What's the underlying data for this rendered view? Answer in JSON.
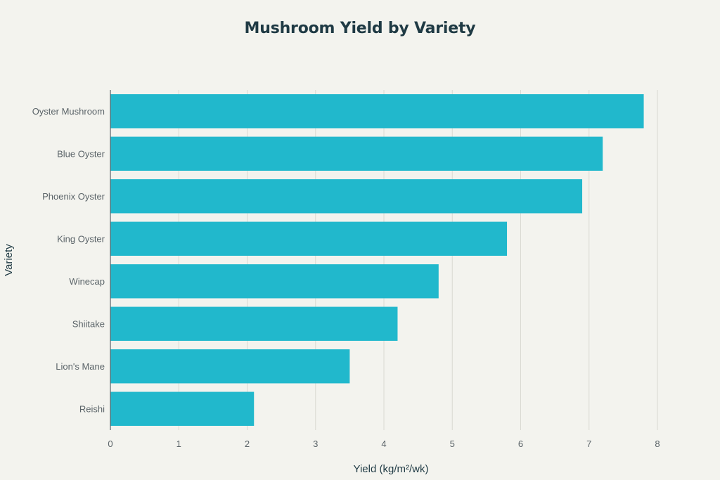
{
  "chart_data": {
    "type": "bar",
    "orientation": "horizontal",
    "title": "Mushroom Yield by Variety",
    "xlabel": "Yield (kg/m²/wk)",
    "ylabel": "Variety",
    "categories": [
      "Oyster Mushroom",
      "Blue Oyster",
      "Phoenix Oyster",
      "King Oyster",
      "Winecap",
      "Shiitake",
      "Lion's Mane",
      "Reishi"
    ],
    "values": [
      7.8,
      7.2,
      6.9,
      5.8,
      4.8,
      4.2,
      3.5,
      2.1
    ],
    "xlim": [
      0,
      8
    ],
    "xticks": [
      "0",
      "1",
      "2",
      "3",
      "4",
      "5",
      "6",
      "7",
      "8"
    ],
    "grid": true,
    "colors": {
      "bar": "#21b8cc",
      "background": "#f3f3ee",
      "grid": "#d9d9d2",
      "axis": "#5a6368",
      "title": "#1f3a44"
    }
  }
}
